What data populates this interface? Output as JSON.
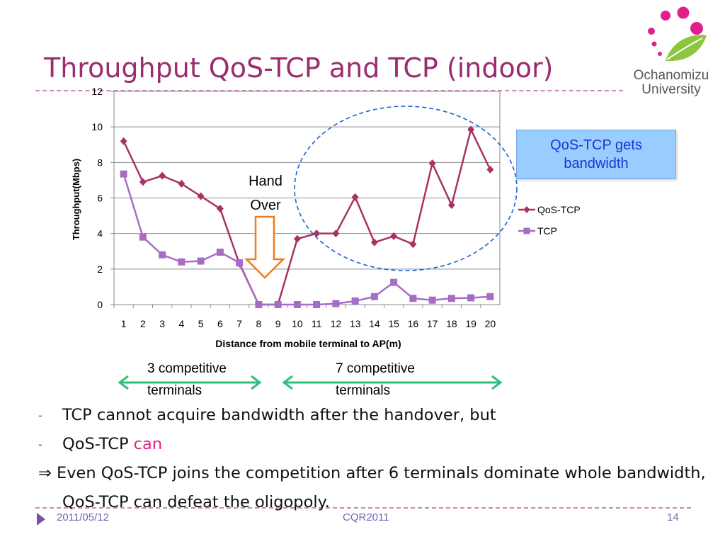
{
  "slide": {
    "title": "Throughput QoS-TCP and TCP (indoor)",
    "logo_text_line1": "Ochanomizu",
    "logo_text_line2": "University",
    "callout_line1": "QoS-TCP gets",
    "callout_line2": "bandwidth",
    "hand_over_line1": "Hand",
    "hand_over_line2": "Over",
    "range_left_line1": "3 competitive",
    "range_left_line2": "terminals",
    "range_right_line1": "7 competitive",
    "range_right_line2": "terminals",
    "bullet1": "TCP cannot acquire bandwidth after the handover, but",
    "bullet2_text": "QoS-TCP ",
    "bullet2_highlight": "can",
    "implication_symbol": "⇒",
    "implication_text": "Even QoS-TCP joins the competition after 6 terminals dominate whole bandwidth, QoS-TCP can defeat the oligopoly.",
    "bullet_marker": "-",
    "footer_date": "2011/05/12",
    "footer_conf": "CQR2011",
    "footer_page": "14"
  },
  "colors": {
    "title": "#9b2c6e",
    "qos_tcp": "#a83265",
    "tcp": "#a76cc4",
    "callout_bg": "#99ccff",
    "callout_text": "#1a35d6",
    "arrow_orange": "#f07c1e",
    "range_arrow": "#2fbf7a",
    "ellipse": "#1c5fd8",
    "highlight": "#e0218a"
  },
  "chart_data": {
    "type": "line",
    "x": [
      1,
      2,
      3,
      4,
      5,
      6,
      7,
      8,
      9,
      10,
      11,
      12,
      13,
      14,
      15,
      16,
      17,
      18,
      19,
      20
    ],
    "xlabel": "Distance from mobile terminal to AP(m)",
    "ylabel": "Throughput(Mbps)",
    "ylim": [
      0,
      12
    ],
    "yticks": [
      0,
      2,
      4,
      6,
      8,
      10,
      12
    ],
    "grid": true,
    "legend_position": "right",
    "series": [
      {
        "name": "QoS-TCP",
        "marker": "diamond",
        "values": [
          9.2,
          6.9,
          7.25,
          6.8,
          6.1,
          5.4,
          2.3,
          0,
          0,
          3.7,
          4.0,
          4.0,
          6.05,
          3.5,
          3.85,
          3.4,
          7.95,
          5.6,
          9.85,
          7.6
        ]
      },
      {
        "name": "TCP",
        "marker": "square",
        "values": [
          7.35,
          3.8,
          2.8,
          2.4,
          2.45,
          2.95,
          2.35,
          0,
          0,
          0,
          0,
          0.05,
          0.2,
          0.45,
          1.25,
          0.35,
          0.25,
          0.35,
          0.38,
          0.45
        ]
      }
    ]
  }
}
